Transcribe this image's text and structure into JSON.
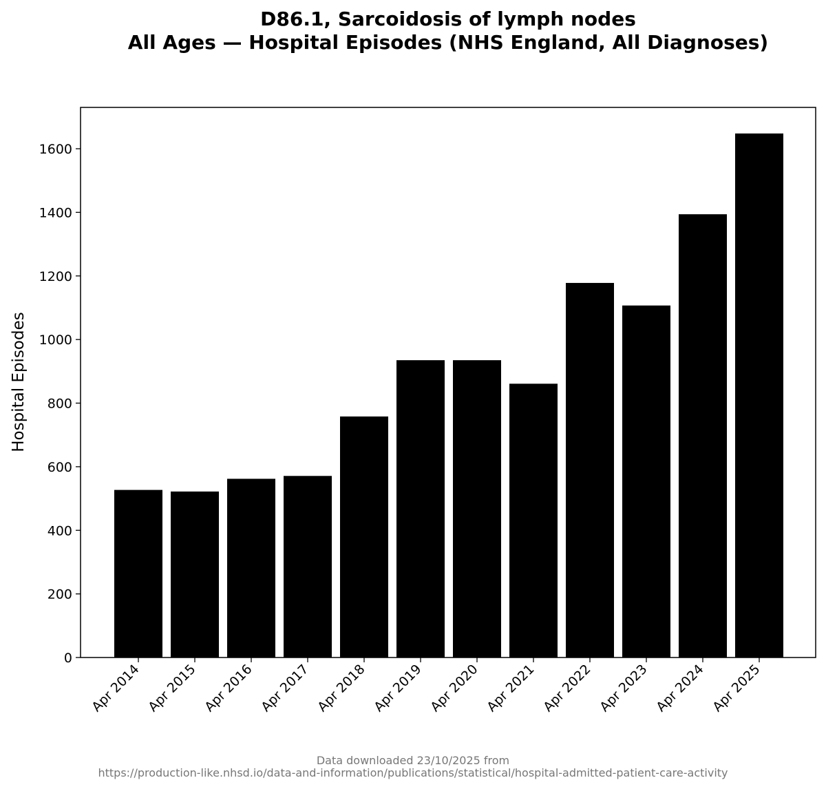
{
  "chart_data": {
    "type": "bar",
    "title_lines": [
      "D86.1, Sarcoidosis of lymph nodes",
      "All Ages — Hospital Episodes (NHS England, All Diagnoses)"
    ],
    "xlabel": "",
    "ylabel": "Hospital Episodes",
    "categories": [
      "Apr 2014",
      "Apr 2015",
      "Apr 2016",
      "Apr 2017",
      "Apr 2018",
      "Apr 2019",
      "Apr 2020",
      "Apr 2021",
      "Apr 2022",
      "Apr 2023",
      "Apr 2024",
      "Apr 2025"
    ],
    "values": [
      527,
      522,
      562,
      571,
      758,
      935,
      935,
      861,
      1178,
      1107,
      1394,
      1648
    ],
    "ylim": [
      0,
      1730
    ],
    "yticks": [
      0,
      200,
      400,
      600,
      800,
      1000,
      1200,
      1400,
      1600
    ],
    "bar_color": "#000000",
    "grid": false,
    "legend": "none"
  },
  "footer": {
    "line1": "Data downloaded 23/10/2025 from",
    "line2": "https://production-like.nhsd.io/data-and-information/publications/statistical/hospital-admitted-patient-care-activity"
  }
}
